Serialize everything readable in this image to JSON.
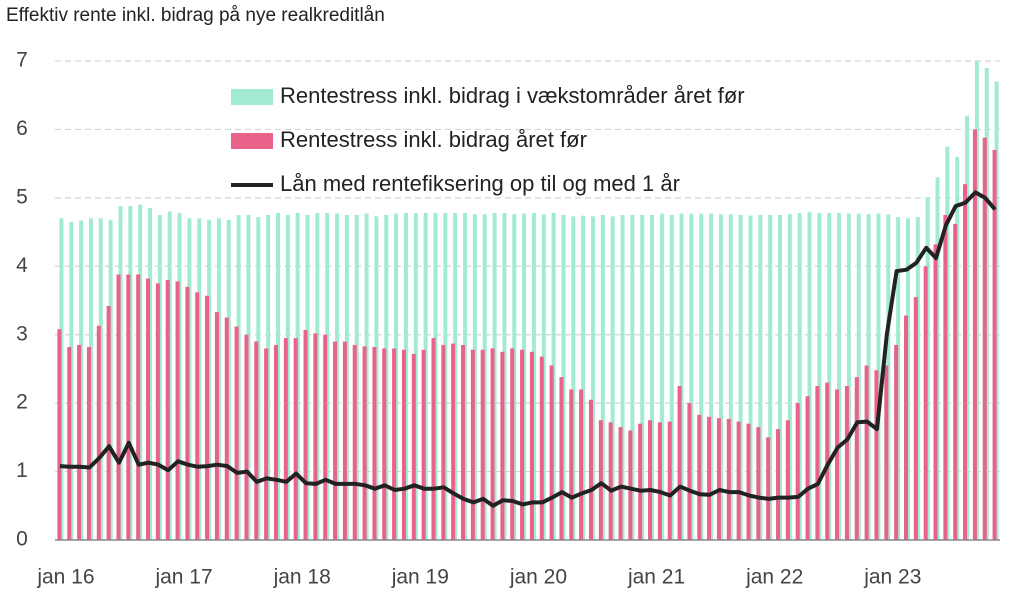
{
  "chart_data": {
    "type": "bar_line",
    "title": "Effektiv rente inkl. bidrag på nye realkreditlån",
    "categories": [
      "jan 16",
      null,
      null,
      null,
      null,
      null,
      null,
      null,
      null,
      null,
      null,
      null,
      "jan 17",
      null,
      null,
      null,
      null,
      null,
      null,
      null,
      null,
      null,
      null,
      null,
      "jan 18",
      null,
      null,
      null,
      null,
      null,
      null,
      null,
      null,
      null,
      null,
      null,
      "jan 19",
      null,
      null,
      null,
      null,
      null,
      null,
      null,
      null,
      null,
      null,
      null,
      "jan 20",
      null,
      null,
      null,
      null,
      null,
      null,
      null,
      null,
      null,
      null,
      null,
      "jan 21",
      null,
      null,
      null,
      null,
      null,
      null,
      null,
      null,
      null,
      null,
      null,
      "jan 22",
      null,
      null,
      null,
      null,
      null,
      null,
      null,
      null,
      null,
      null,
      null,
      "jan 23",
      null,
      null,
      null,
      null,
      null,
      null,
      null,
      null,
      null,
      null,
      null
    ],
    "series": [
      {
        "name": "Rentestress inkl. bidrag i vækstområder året før",
        "color": "#a3ebd0",
        "kind": "bar",
        "values": [
          4.7,
          4.65,
          4.67,
          4.7,
          4.7,
          4.68,
          4.88,
          4.88,
          4.9,
          4.85,
          4.75,
          4.8,
          4.78,
          4.7,
          4.7,
          4.68,
          4.7,
          4.68,
          4.75,
          4.75,
          4.72,
          4.75,
          4.78,
          4.75,
          4.78,
          4.75,
          4.78,
          4.78,
          4.77,
          4.75,
          4.75,
          4.77,
          4.73,
          4.75,
          4.77,
          4.78,
          4.78,
          4.78,
          4.78,
          4.78,
          4.78,
          4.78,
          4.76,
          4.76,
          4.78,
          4.78,
          4.76,
          4.77,
          4.78,
          4.76,
          4.78,
          4.75,
          4.73,
          4.74,
          4.73,
          4.75,
          4.73,
          4.75,
          4.75,
          4.75,
          4.75,
          4.77,
          4.75,
          4.77,
          4.77,
          4.77,
          4.77,
          4.76,
          4.76,
          4.75,
          4.74,
          4.75,
          4.75,
          4.75,
          4.76,
          4.78,
          4.79,
          4.78,
          4.78,
          4.78,
          4.77,
          4.77,
          4.76,
          4.77,
          4.76,
          4.72,
          4.7,
          4.72,
          5.0,
          5.3,
          5.75,
          5.6,
          6.2,
          7.0,
          6.9,
          6.7
        ]
      },
      {
        "name": "Rentestress inkl. bidrag året før",
        "color": "#e8628a",
        "kind": "bar",
        "values": [
          3.08,
          2.82,
          2.85,
          2.82,
          3.13,
          3.42,
          3.88,
          3.88,
          3.88,
          3.82,
          3.75,
          3.8,
          3.78,
          3.7,
          3.62,
          3.57,
          3.33,
          3.25,
          3.12,
          3.0,
          2.9,
          2.8,
          2.85,
          2.95,
          2.95,
          3.07,
          3.02,
          3.0,
          2.9,
          2.9,
          2.85,
          2.83,
          2.82,
          2.8,
          2.8,
          2.78,
          2.72,
          2.78,
          2.95,
          2.85,
          2.87,
          2.85,
          2.78,
          2.78,
          2.8,
          2.75,
          2.8,
          2.78,
          2.75,
          2.68,
          2.55,
          2.38,
          2.2,
          2.2,
          2.05,
          1.75,
          1.72,
          1.65,
          1.6,
          1.7,
          1.75,
          1.72,
          1.73,
          2.25,
          2.0,
          1.83,
          1.8,
          1.78,
          1.77,
          1.73,
          1.7,
          1.65,
          1.5,
          1.62,
          1.75,
          2.0,
          2.1,
          2.25,
          2.3,
          2.2,
          2.25,
          2.38,
          2.55,
          2.48,
          2.55,
          2.85,
          3.28,
          3.55,
          4.0,
          4.32,
          4.75,
          4.62,
          5.2,
          6.0,
          5.88,
          5.7
        ]
      },
      {
        "name": "Lån med rentefiksering op til og med 1 år",
        "color": "#222222",
        "kind": "line",
        "values": [
          1.08,
          1.07,
          1.07,
          1.06,
          1.2,
          1.37,
          1.13,
          1.42,
          1.1,
          1.13,
          1.1,
          1.02,
          1.15,
          1.1,
          1.07,
          1.08,
          1.1,
          1.08,
          0.98,
          1.0,
          0.85,
          0.9,
          0.88,
          0.85,
          0.97,
          0.83,
          0.82,
          0.88,
          0.82,
          0.82,
          0.82,
          0.8,
          0.75,
          0.8,
          0.73,
          0.75,
          0.8,
          0.75,
          0.75,
          0.77,
          0.68,
          0.6,
          0.55,
          0.6,
          0.5,
          0.58,
          0.57,
          0.52,
          0.55,
          0.55,
          0.62,
          0.7,
          0.62,
          0.68,
          0.73,
          0.83,
          0.72,
          0.78,
          0.75,
          0.72,
          0.73,
          0.7,
          0.65,
          0.78,
          0.72,
          0.67,
          0.66,
          0.73,
          0.7,
          0.7,
          0.65,
          0.62,
          0.6,
          0.62,
          0.62,
          0.63,
          0.75,
          0.82,
          1.1,
          1.35,
          1.47,
          1.72,
          1.73,
          1.62,
          3.0,
          3.93,
          3.95,
          4.05,
          4.27,
          4.12,
          4.6,
          4.88,
          4.93,
          5.08,
          5.0,
          4.83
        ]
      }
    ],
    "ylim": [
      0,
      7
    ],
    "yticks": [
      0,
      1,
      2,
      3,
      4,
      5,
      6,
      7
    ],
    "grid": true
  }
}
